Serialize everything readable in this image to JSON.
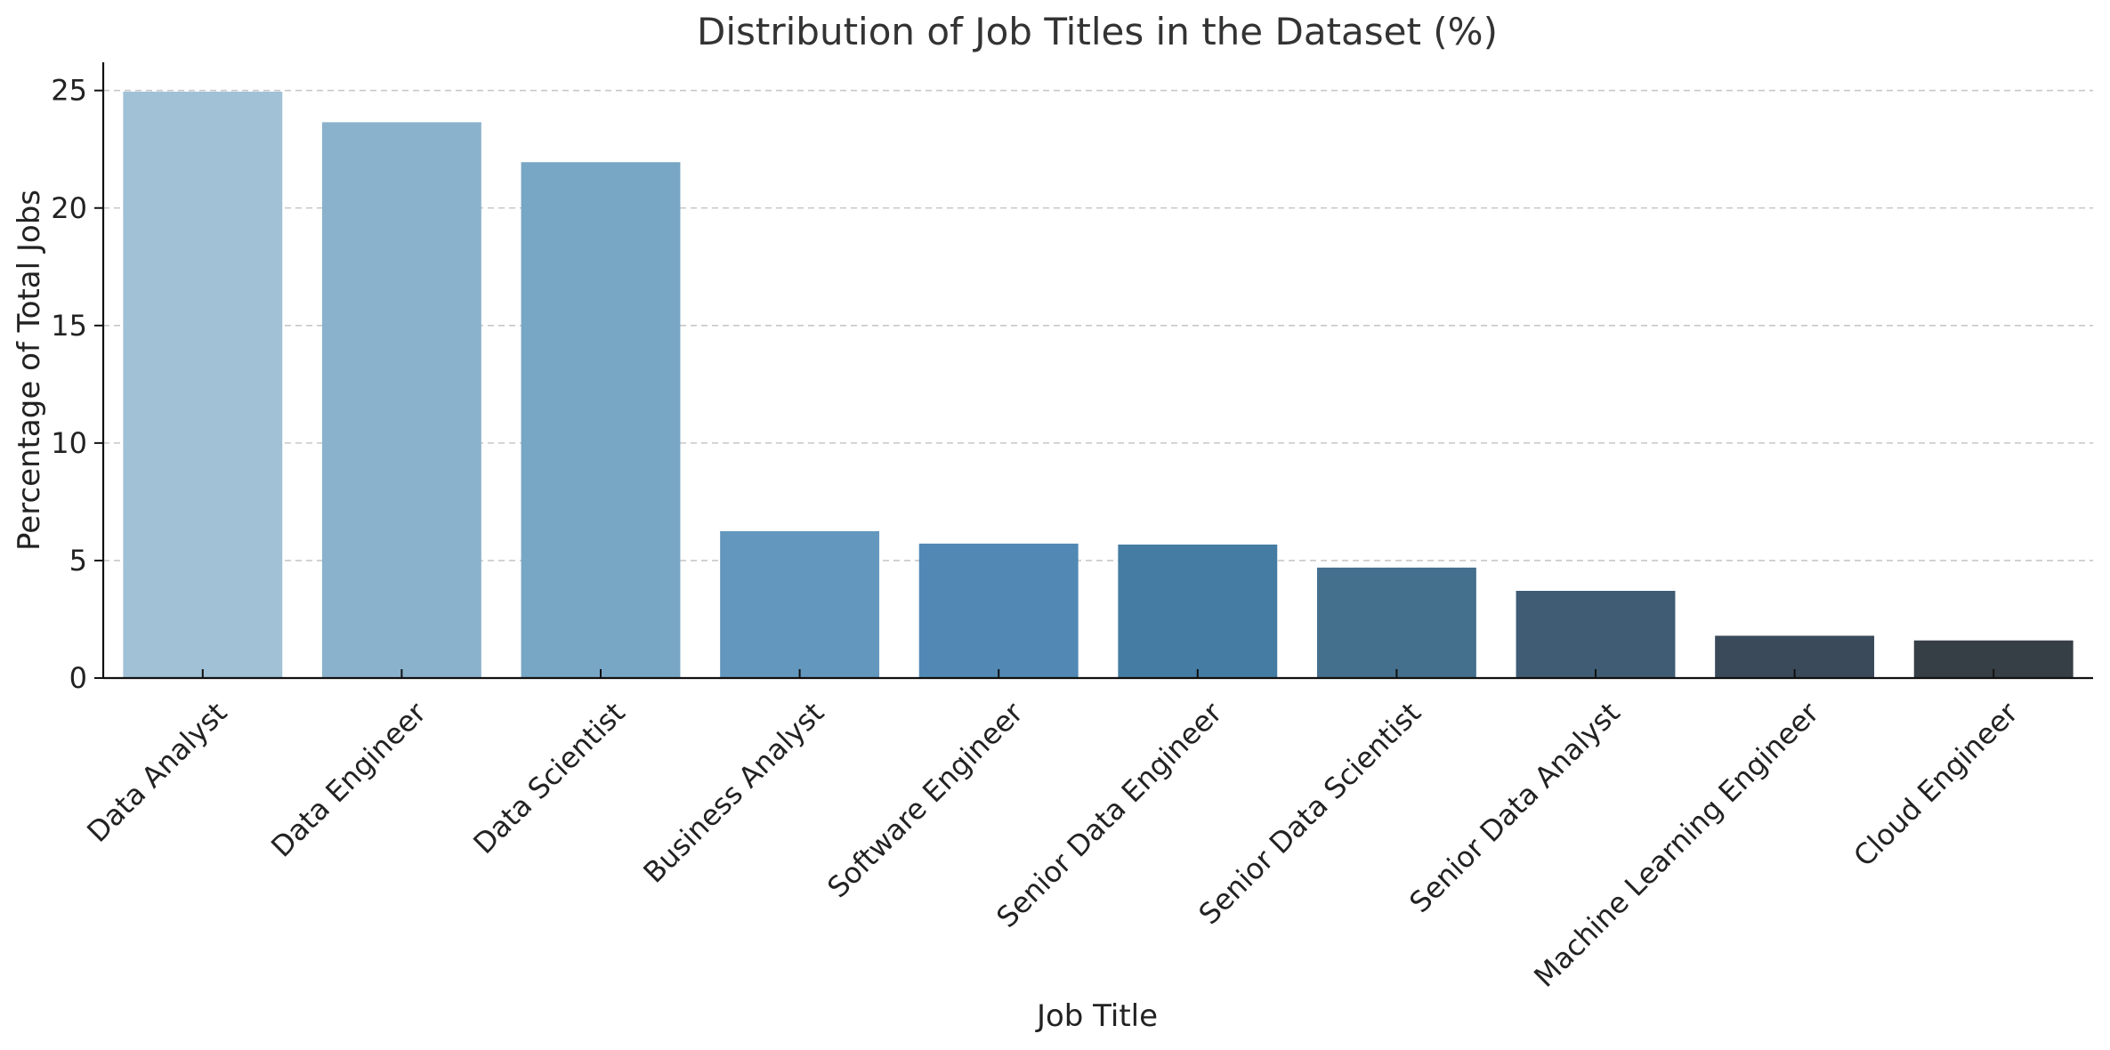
{
  "chart_data": {
    "type": "bar",
    "title": "Distribution of Job Titles in the Dataset (%)",
    "xlabel": "Job Title",
    "ylabel": "Percentage of Total Jobs",
    "categories": [
      "Data Analyst",
      "Data Engineer",
      "Data Scientist",
      "Business Analyst",
      "Software Engineer",
      "Senior Data Engineer",
      "Senior Data Scientist",
      "Senior Data Analyst",
      "Machine Learning Engineer",
      "Cloud Engineer"
    ],
    "values": [
      24.95,
      23.65,
      21.95,
      6.25,
      5.72,
      5.68,
      4.7,
      3.71,
      1.8,
      1.6
    ],
    "colors": [
      "#a0c1d6",
      "#8bb2cc",
      "#78a6c5",
      "#6497be",
      "#5189b4",
      "#457ca3",
      "#446f8d",
      "#3f5c74",
      "#3a4a5a",
      "#363f46"
    ],
    "ylim": [
      0,
      26.2
    ],
    "yticks": [
      0,
      5,
      10,
      15,
      20,
      25
    ],
    "grid": "y-dashed",
    "legend": "none"
  }
}
